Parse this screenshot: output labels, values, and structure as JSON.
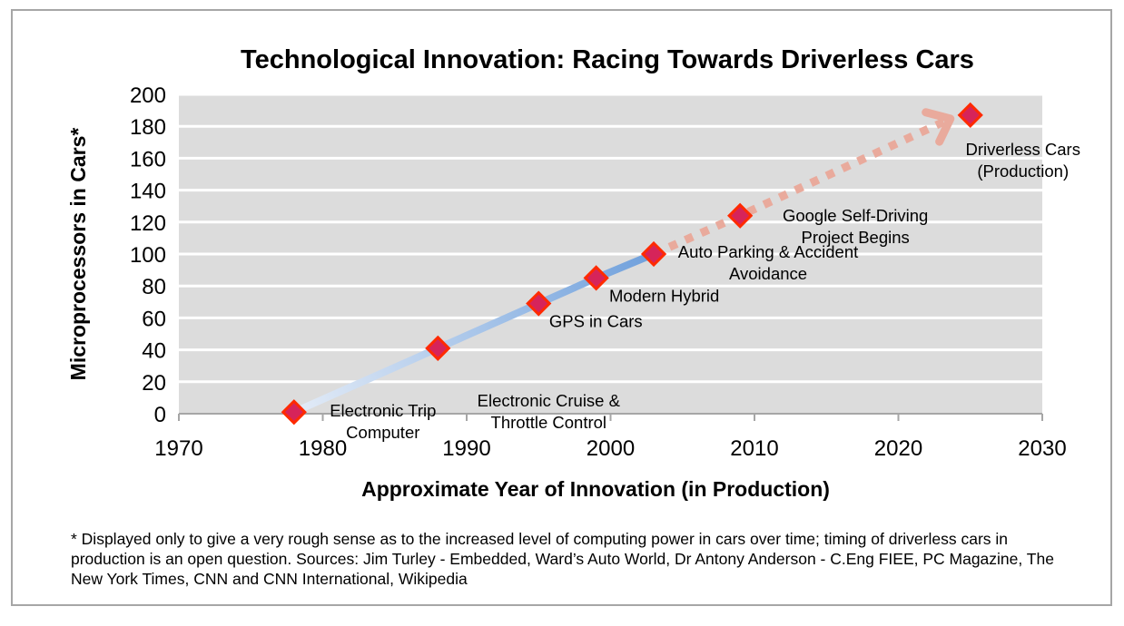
{
  "chart_data": {
    "type": "line",
    "title": "Technological Innovation: Racing Towards Driverless Cars",
    "xlabel": "Approximate Year of Innovation (in Production)",
    "ylabel": "Microprocessors in Cars*",
    "xlim": [
      1970,
      2030
    ],
    "ylim": [
      0,
      200
    ],
    "xticks": [
      1970,
      1980,
      1990,
      2000,
      2010,
      2020,
      2030
    ],
    "yticks": [
      0,
      20,
      40,
      60,
      80,
      100,
      120,
      140,
      160,
      180,
      200
    ],
    "grid": "horizontal",
    "legend": "none",
    "plot_background": "#dcdcdc",
    "marker_color": "#d6245a",
    "marker_edge_color": "#ff2a00",
    "points": [
      {
        "x": 1978,
        "y": 1,
        "label": [
          "Electronic Trip",
          "Computer"
        ]
      },
      {
        "x": 1988,
        "y": 41,
        "label": [
          "Electronic Cruise &",
          "Throttle Control"
        ]
      },
      {
        "x": 1995,
        "y": 69,
        "label": [
          "GPS in Cars"
        ]
      },
      {
        "x": 1999,
        "y": 85,
        "label": [
          "Modern Hybrid"
        ]
      },
      {
        "x": 2003,
        "y": 100,
        "label": [
          "Auto Parking & Accident",
          "Avoidance"
        ]
      },
      {
        "x": 2009,
        "y": 124,
        "label": [
          "Google Self-Driving",
          "Project Begins"
        ]
      },
      {
        "x": 2025,
        "y": 187,
        "label": [
          "Driverless Cars",
          "(Production)"
        ]
      }
    ],
    "solid_segment": {
      "from": 1978,
      "to": 2003,
      "color_start": "#e4ecf7",
      "color_end": "#6fa0dc"
    },
    "dotted_segment": {
      "from": 2003,
      "to": 2025,
      "color": "#e9aa9c",
      "arrow": true
    }
  },
  "footnote": "* Displayed only to give a very rough sense as to the increased level of computing power in cars over time; timing of driverless cars in production  is an open question.  Sources: Jim Turley - Embedded, Ward’s Auto World, Dr Antony Anderson - C.Eng FIEE, PC Magazine, The New York Times, CNN and CNN International, Wikipedia"
}
